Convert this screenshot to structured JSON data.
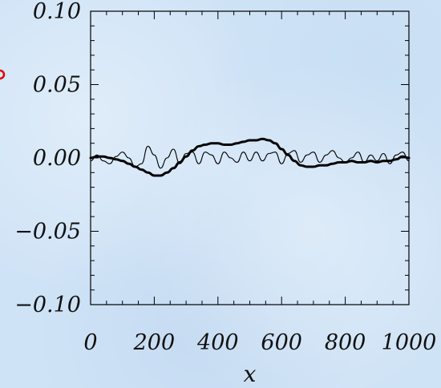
{
  "chart_data": {
    "type": "line",
    "title": "",
    "xlabel": "x",
    "ylabel": "",
    "xlim": [
      0,
      1000
    ],
    "ylim": [
      -0.1,
      0.1
    ],
    "x_ticks": [
      "0",
      "200",
      "400",
      "600",
      "800",
      "1000"
    ],
    "y_ticks": [
      "0.10",
      "0.05",
      "0.00",
      "−0.05",
      "−0.10"
    ],
    "grid": false,
    "series": [
      {
        "style": "thin",
        "color": "#000000",
        "x": [
          0,
          20,
          40,
          60,
          80,
          100,
          120,
          140,
          160,
          180,
          200,
          220,
          240,
          260,
          280,
          300,
          320,
          340,
          360,
          380,
          400,
          420,
          440,
          460,
          480,
          500,
          520,
          540,
          560,
          580,
          600,
          620,
          640,
          660,
          680,
          700,
          720,
          740,
          760,
          780,
          800,
          820,
          840,
          860,
          880,
          900,
          920,
          940,
          960,
          980,
          1000
        ],
        "y": [
          -0.002,
          0.002,
          -0.002,
          -0.004,
          0.001,
          0.004,
          0.0,
          -0.006,
          -0.004,
          0.008,
          0.002,
          -0.007,
          0.0,
          0.006,
          -0.004,
          0.003,
          0.004,
          -0.004,
          0.004,
          0.002,
          -0.004,
          0.004,
          0.0,
          -0.003,
          0.004,
          -0.002,
          0.004,
          -0.002,
          0.003,
          0.004,
          -0.004,
          0.003,
          0.005,
          -0.003,
          0.002,
          0.004,
          -0.003,
          0.002,
          0.005,
          0.0,
          -0.003,
          0.0,
          0.004,
          -0.003,
          0.002,
          -0.002,
          0.003,
          -0.004,
          0.002,
          0.004,
          -0.002
        ]
      },
      {
        "style": "thick",
        "color": "#000000",
        "x": [
          0,
          20,
          40,
          60,
          80,
          100,
          120,
          140,
          160,
          180,
          200,
          220,
          240,
          260,
          280,
          300,
          320,
          340,
          360,
          380,
          400,
          420,
          440,
          460,
          480,
          500,
          520,
          540,
          560,
          580,
          600,
          620,
          640,
          660,
          680,
          700,
          720,
          740,
          760,
          780,
          800,
          820,
          840,
          860,
          880,
          900,
          920,
          940,
          960,
          980,
          1000
        ],
        "y": [
          0.0,
          0.001,
          0.001,
          0.0,
          -0.001,
          -0.002,
          -0.004,
          -0.006,
          -0.008,
          -0.01,
          -0.012,
          -0.012,
          -0.01,
          -0.007,
          -0.003,
          0.001,
          0.005,
          0.008,
          0.009,
          0.01,
          0.01,
          0.009,
          0.009,
          0.01,
          0.011,
          0.012,
          0.012,
          0.013,
          0.012,
          0.01,
          0.006,
          0.002,
          -0.002,
          -0.005,
          -0.006,
          -0.006,
          -0.005,
          -0.005,
          -0.004,
          -0.003,
          -0.003,
          -0.002,
          -0.003,
          -0.003,
          -0.002,
          -0.003,
          -0.002,
          -0.002,
          -0.001,
          0.001,
          0.0
        ]
      }
    ]
  }
}
